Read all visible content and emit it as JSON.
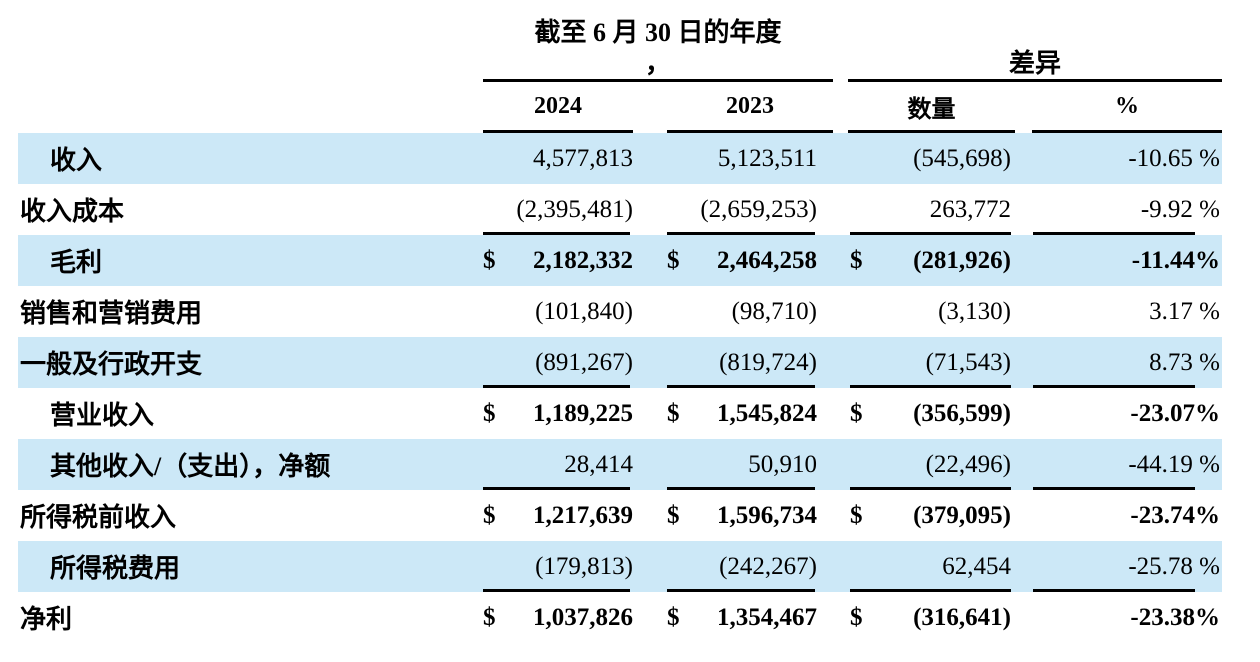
{
  "table": {
    "header": {
      "period_title_line1": "截至 6 月 30 日的年度",
      "period_title_line2": "，",
      "diff_title": "差异",
      "col_2024": "2024",
      "col_2023": "2023",
      "col_amount": "数量",
      "col_pct": "%"
    },
    "rows": [
      {
        "label": "收入",
        "indent": true,
        "shaded": true,
        "bold": false,
        "rule_below": false,
        "y2024": "4,577,813",
        "y2023": "5,123,511",
        "diff": "(545,698)",
        "pct": "-10.65 %"
      },
      {
        "label": "收入成本",
        "indent": false,
        "shaded": false,
        "bold": false,
        "rule_below": true,
        "y2024": "(2,395,481)",
        "y2023": "(2,659,253)",
        "diff": "263,772",
        "pct": "-9.92 %"
      },
      {
        "label": "毛利",
        "indent": true,
        "shaded": true,
        "bold": true,
        "rule_below": false,
        "dollar": "$",
        "y2024": "2,182,332",
        "y2023": "2,464,258",
        "diff": "(281,926)",
        "pct": "-11.44%"
      },
      {
        "label": "销售和营销费用",
        "indent": false,
        "shaded": false,
        "bold": false,
        "rule_below": false,
        "y2024": "(101,840)",
        "y2023": "(98,710)",
        "diff": "(3,130)",
        "pct": "3.17 %"
      },
      {
        "label": "一般及行政开支",
        "indent": false,
        "shaded": true,
        "bold": false,
        "rule_below": true,
        "y2024": "(891,267)",
        "y2023": "(819,724)",
        "diff": "(71,543)",
        "pct": "8.73 %"
      },
      {
        "label": "营业收入",
        "indent": true,
        "shaded": false,
        "bold": true,
        "rule_below": false,
        "dollar": "$",
        "y2024": "1,189,225",
        "y2023": "1,545,824",
        "diff": "(356,599)",
        "pct": "-23.07%"
      },
      {
        "label": "其他收入/（支出），净额",
        "indent": true,
        "shaded": true,
        "bold": false,
        "rule_below": true,
        "y2024": "28,414",
        "y2023": "50,910",
        "diff": "(22,496)",
        "pct": "-44.19 %"
      },
      {
        "label": "所得税前收入",
        "indent": false,
        "shaded": false,
        "bold": true,
        "rule_below": false,
        "dollar": "$",
        "y2024": "1,217,639",
        "y2023": "1,596,734",
        "diff": "(379,095)",
        "pct": "-23.74%"
      },
      {
        "label": "所得税费用",
        "indent": true,
        "shaded": true,
        "bold": false,
        "rule_below": true,
        "y2024": "(179,813)",
        "y2023": "(242,267)",
        "diff": "62,454",
        "pct": "-25.78 %"
      },
      {
        "label": "净利",
        "indent": false,
        "shaded": false,
        "bold": true,
        "rule_below": false,
        "dollar": "$",
        "y2024": "1,037,826",
        "y2023": "1,354,467",
        "diff": "(316,641)",
        "pct": "-23.38%"
      }
    ]
  },
  "colors": {
    "shaded_row": "#cce8f7",
    "text": "#000000",
    "rule": "#000000"
  }
}
